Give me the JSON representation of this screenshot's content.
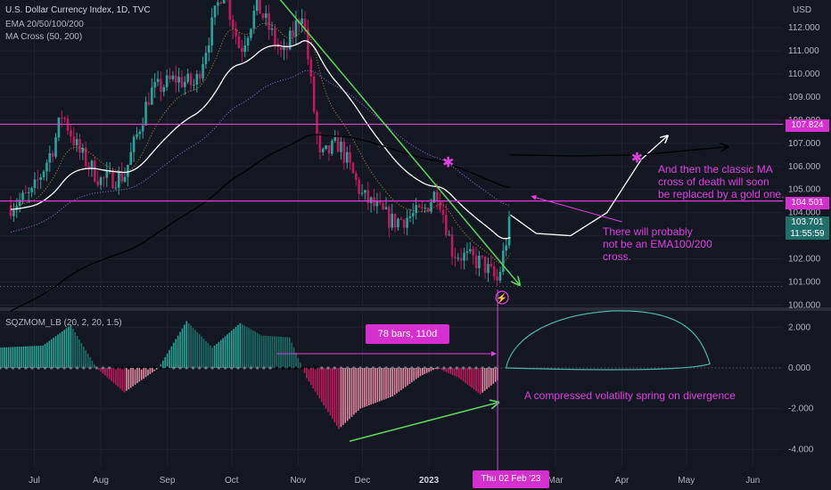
{
  "header": {
    "title": "U.S. Dollar Currency Index, 1D, TVC",
    "indicators": [
      "EMA 20/50/100/200",
      "MA Cross (50, 200)"
    ],
    "currency": "USD"
  },
  "annotations": {
    "gold_cross": [
      "And then the classic MA",
      "cross of death will soon",
      "be replaced by a gold one."
    ],
    "no_cross": [
      "There will probably",
      "not be an EMA100/200",
      "cross."
    ],
    "spring": "A compressed volatility spring on divergence",
    "bars_label": "78 bars, 110d"
  },
  "price_tags": {
    "upper": "107.824",
    "lower": "104.501",
    "last": "103.701",
    "countdown": "11:55:59"
  },
  "crosshair_date": "Thu 02 Feb '23",
  "colors": {
    "background": "#131722",
    "magenta": "#e040e0",
    "bull": "#26a69a",
    "bear": "#c2185b",
    "green_arrow": "#5fd35f",
    "ema_white": "#ffffff",
    "ema_black": "#000000"
  },
  "chart_data": [
    {
      "type": "candlestick",
      "title": "U.S. Dollar Currency Index, 1D, TVC",
      "x_ticks": [
        "Jul",
        "Aug",
        "Sep",
        "Oct",
        "Nov",
        "Dec",
        "2023",
        "Mar",
        "Apr",
        "May",
        "Jun"
      ],
      "y_ticks": [
        "112.000",
        "111.000",
        "110.000",
        "109.000",
        "108.000",
        "107.000",
        "106.000",
        "105.000",
        "104.000",
        "103.000",
        "102.000",
        "101.000",
        "100.000"
      ],
      "ylim": [
        99.9,
        113.2
      ],
      "horizontal_levels": [
        107.824,
        104.501
      ],
      "close_path": [
        {
          "date": "2022-06-20",
          "value": 104.3
        },
        {
          "date": "2022-06-30",
          "value": 104.8
        },
        {
          "date": "2022-07-10",
          "value": 106.9
        },
        {
          "date": "2022-07-14",
          "value": 108.3
        },
        {
          "date": "2022-07-22",
          "value": 106.6
        },
        {
          "date": "2022-08-01",
          "value": 105.4
        },
        {
          "date": "2022-08-12",
          "value": 105.6
        },
        {
          "date": "2022-08-24",
          "value": 109.2
        },
        {
          "date": "2022-09-05",
          "value": 109.8
        },
        {
          "date": "2022-09-14",
          "value": 109.5
        },
        {
          "date": "2022-09-27",
          "value": 113.8
        },
        {
          "date": "2022-10-05",
          "value": 111.0
        },
        {
          "date": "2022-10-13",
          "value": 113.0
        },
        {
          "date": "2022-10-25",
          "value": 110.7
        },
        {
          "date": "2022-11-03",
          "value": 112.8
        },
        {
          "date": "2022-11-11",
          "value": 106.3
        },
        {
          "date": "2022-11-20",
          "value": 107.0
        },
        {
          "date": "2022-12-01",
          "value": 104.7
        },
        {
          "date": "2022-12-15",
          "value": 103.6
        },
        {
          "date": "2022-12-29",
          "value": 104.0
        },
        {
          "date": "2023-01-05",
          "value": 105.0
        },
        {
          "date": "2023-01-12",
          "value": 102.3
        },
        {
          "date": "2023-01-20",
          "value": 102.0
        },
        {
          "date": "2023-01-26",
          "value": 101.8
        },
        {
          "date": "2023-02-02",
          "value": 101.0
        },
        {
          "date": "2023-02-08",
          "value": 103.7
        }
      ]
    },
    {
      "type": "bar",
      "title": "SQZMOM_LB (20, 2, 20, 1.5)",
      "x_ticks": [
        "Jul",
        "Aug",
        "Sep",
        "Oct",
        "Nov",
        "Dec",
        "2023",
        "Mar",
        "Apr",
        "May",
        "Jun"
      ],
      "y_ticks": [
        "2.000",
        "0.000",
        "-2.000",
        "-4.000"
      ],
      "ylim": [
        -4.9,
        2.8
      ],
      "momentum_path": [
        {
          "date": "2022-06-15",
          "value": 1.0
        },
        {
          "date": "2022-07-05",
          "value": 1.1
        },
        {
          "date": "2022-07-18",
          "value": 2.1
        },
        {
          "date": "2022-07-30",
          "value": 0.0
        },
        {
          "date": "2022-08-12",
          "value": -1.2
        },
        {
          "date": "2022-08-28",
          "value": 0.0
        },
        {
          "date": "2022-09-10",
          "value": 2.3
        },
        {
          "date": "2022-09-22",
          "value": 1.0
        },
        {
          "date": "2022-10-05",
          "value": 2.2
        },
        {
          "date": "2022-10-15",
          "value": 1.6
        },
        {
          "date": "2022-10-28",
          "value": 1.5
        },
        {
          "date": "2022-11-05",
          "value": -0.5
        },
        {
          "date": "2022-11-20",
          "value": -3.0
        },
        {
          "date": "2022-11-30",
          "value": -2.0
        },
        {
          "date": "2022-12-15",
          "value": -1.4
        },
        {
          "date": "2022-12-28",
          "value": -0.4
        },
        {
          "date": "2023-01-05",
          "value": 0.0
        },
        {
          "date": "2023-01-15",
          "value": -0.5
        },
        {
          "date": "2023-01-25",
          "value": -1.3
        },
        {
          "date": "2023-02-02",
          "value": -0.6
        }
      ]
    }
  ]
}
